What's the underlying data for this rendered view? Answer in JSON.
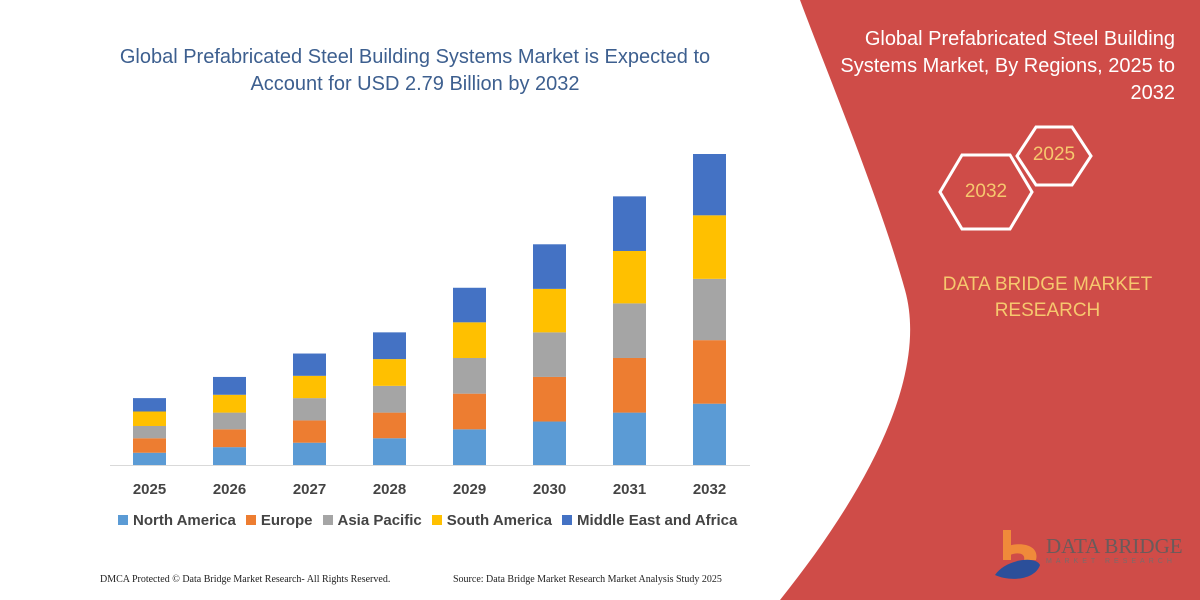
{
  "title": "Global Prefabricated Steel Building Systems Market is Expected to Account for USD 2.79 Billion by 2032",
  "side_panel": {
    "title": "Global Prefabricated Steel Building Systems Market, By Regions, 2025 to 2032",
    "hex_labels": [
      "2025",
      "2032"
    ],
    "brand": "DATA BRIDGE MARKET RESEARCH",
    "logo_text": "DATA BRIDGE",
    "logo_subtext": "MARKET RESEARCH",
    "color": "#cf4c48",
    "accent": "#f6c86e"
  },
  "footer": {
    "left": "DMCA Protected © Data Bridge Market Research-  All Rights Reserved.",
    "right": "Source: Data Bridge Market Research  Market Analysis Study 2025"
  },
  "chart_data": {
    "type": "bar",
    "stacked": true,
    "categories": [
      "2025",
      "2026",
      "2027",
      "2028",
      "2029",
      "2030",
      "2031",
      "2032"
    ],
    "series": [
      {
        "name": "North America",
        "color": "#5b9bd5",
        "values": [
          0.11,
          0.16,
          0.2,
          0.24,
          0.32,
          0.39,
          0.47,
          0.55
        ]
      },
      {
        "name": "Europe",
        "color": "#ed7d31",
        "values": [
          0.13,
          0.16,
          0.2,
          0.23,
          0.32,
          0.4,
          0.49,
          0.57
        ]
      },
      {
        "name": "Asia Pacific",
        "color": "#a5a5a5",
        "values": [
          0.11,
          0.15,
          0.2,
          0.24,
          0.32,
          0.4,
          0.49,
          0.55
        ]
      },
      {
        "name": "South America",
        "color": "#ffc000",
        "values": [
          0.13,
          0.16,
          0.2,
          0.24,
          0.32,
          0.39,
          0.47,
          0.57
        ]
      },
      {
        "name": "Middle East and Africa",
        "color": "#4472c4",
        "values": [
          0.12,
          0.16,
          0.2,
          0.24,
          0.31,
          0.4,
          0.49,
          0.55
        ]
      }
    ],
    "ylim": [
      0,
      2.79
    ],
    "grid": false,
    "legend_position": "bottom"
  }
}
